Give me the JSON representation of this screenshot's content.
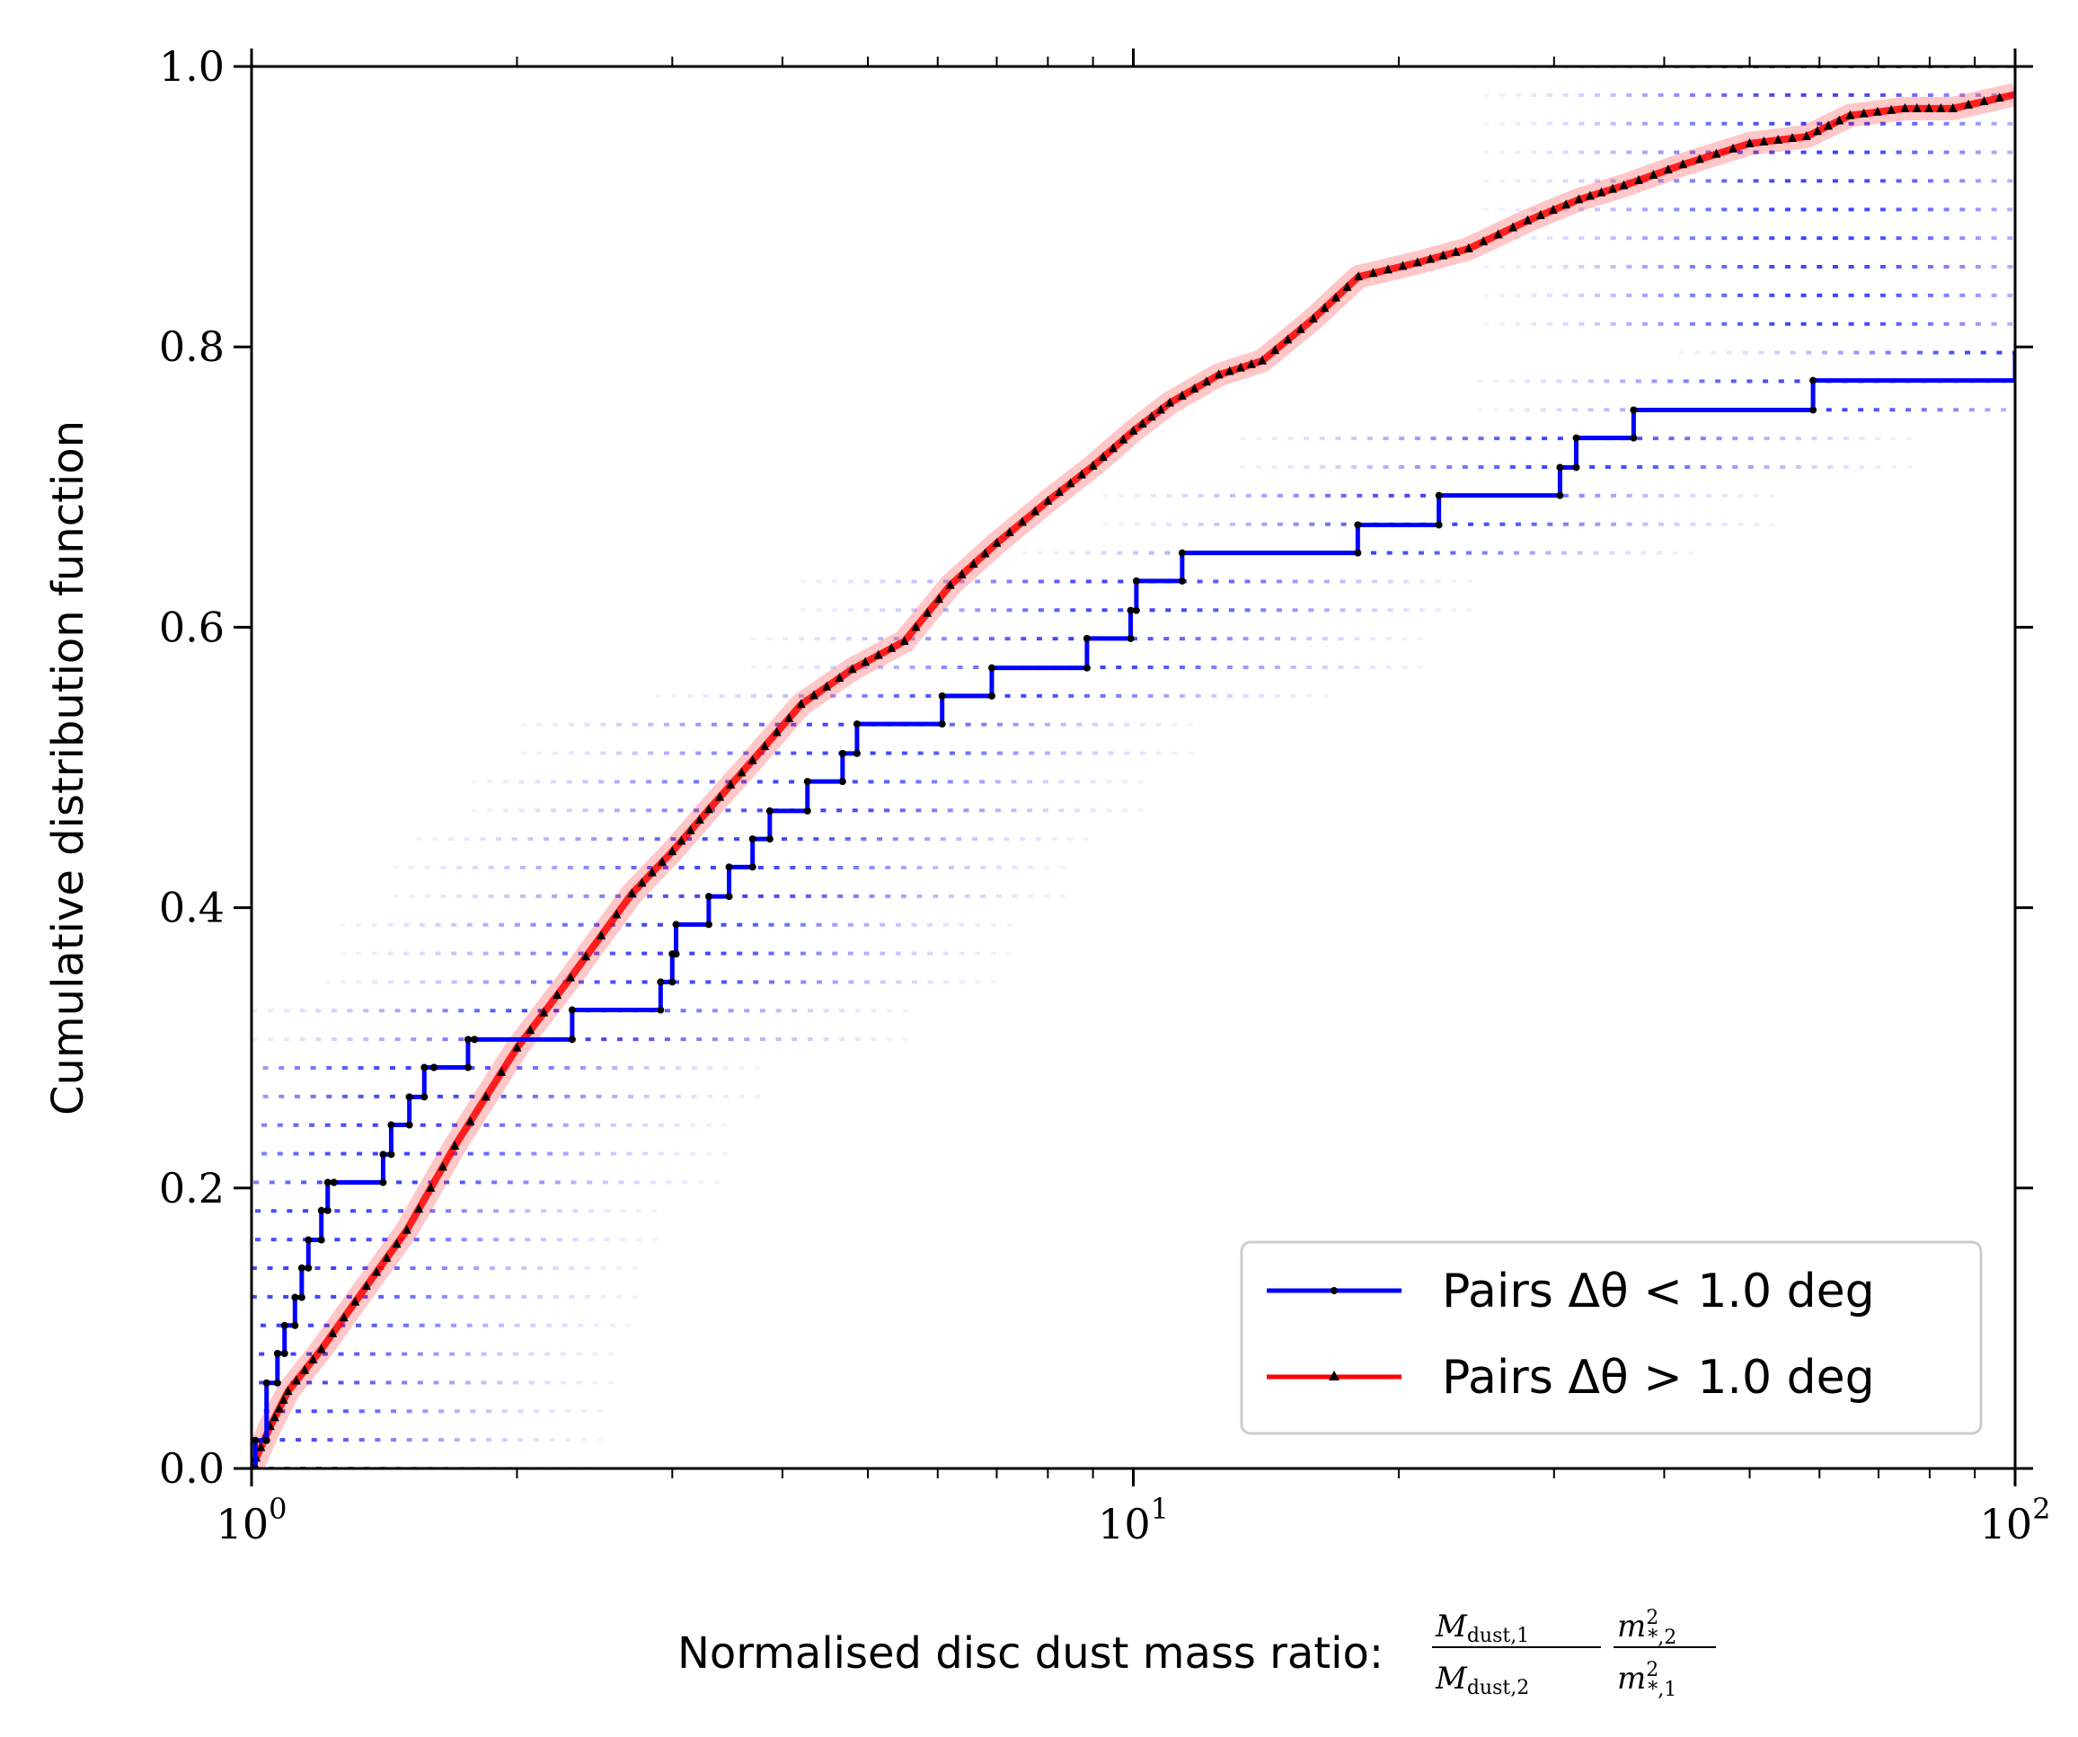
{
  "chart_data": {
    "type": "line",
    "xscale": "log",
    "xlim": [
      1,
      100
    ],
    "ylim": [
      0,
      1
    ],
    "xlabel": "Normalised disc dust mass ratio:",
    "xlabel_math": {
      "num1": "M",
      "num1_sub": "dust,1",
      "den1": "M",
      "den1_sub": "dust,2",
      "num2": "m",
      "num2_sup": "2",
      "num2_sub": "*,2",
      "den2": "m",
      "den2_sup": "2",
      "den2_sub": "*,1"
    },
    "ylabel": "Cumulative distribution function",
    "x_ticks": [
      {
        "value": 1,
        "base": "10",
        "exp": "0"
      },
      {
        "value": 10,
        "base": "10",
        "exp": "1"
      },
      {
        "value": 100,
        "base": "10",
        "exp": "2"
      }
    ],
    "y_ticks": [
      {
        "value": 0.0,
        "label": "0.0"
      },
      {
        "value": 0.2,
        "label": "0.2"
      },
      {
        "value": 0.4,
        "label": "0.4"
      },
      {
        "value": 0.6,
        "label": "0.6"
      },
      {
        "value": 0.8,
        "label": "0.8"
      },
      {
        "value": 1.0,
        "label": "1.0"
      }
    ],
    "grid": false,
    "legend_position": "bottom-right",
    "series": [
      {
        "name": "Pairs Δθ < 1.0 deg",
        "color": "#0000ff",
        "marker": "dot",
        "style": "step",
        "x": [
          1.0,
          1.01,
          1.04,
          1.07,
          1.09,
          1.12,
          1.14,
          1.16,
          1.2,
          1.22,
          1.24,
          1.41,
          1.44,
          1.51,
          1.57,
          1.61,
          1.76,
          1.79,
          2.31,
          2.91,
          3.0,
          3.03,
          3.3,
          3.48,
          3.7,
          3.87,
          4.27,
          4.68,
          4.86,
          6.07,
          6.91,
          8.86,
          9.93,
          10.08,
          11.36,
          17.97,
          22.21,
          30.47,
          31.79,
          36.93,
          59.0,
          100
        ],
        "y": [
          0.0,
          0.02,
          0.061,
          0.082,
          0.102,
          0.122,
          0.143,
          0.163,
          0.184,
          0.204,
          0.204,
          0.224,
          0.245,
          0.265,
          0.286,
          0.286,
          0.306,
          0.306,
          0.327,
          0.347,
          0.367,
          0.388,
          0.408,
          0.429,
          0.449,
          0.469,
          0.49,
          0.51,
          0.531,
          0.551,
          0.571,
          0.592,
          0.612,
          0.633,
          0.653,
          0.673,
          0.694,
          0.714,
          0.735,
          0.755,
          0.776,
          0.796
        ]
      },
      {
        "name": "Pairs Δθ > 1.0 deg",
        "color": "#ff0000",
        "marker": "triangle",
        "style": "line",
        "x": [
          1.0,
          1.05,
          1.1,
          1.2,
          1.35,
          1.5,
          1.7,
          2.0,
          2.3,
          2.7,
          3.0,
          3.3,
          3.7,
          4.2,
          4.8,
          5.5,
          6.2,
          7.0,
          8.0,
          9.0,
          10.0,
          11.0,
          12.5,
          14.0,
          16.0,
          18.0,
          21.0,
          24.0,
          28.0,
          32.0,
          36.0,
          42.0,
          50.0,
          58.0,
          65.0,
          75.0,
          85.0,
          100.0
        ],
        "y": [
          0.0,
          0.03,
          0.055,
          0.085,
          0.13,
          0.17,
          0.23,
          0.3,
          0.35,
          0.41,
          0.44,
          0.47,
          0.505,
          0.545,
          0.57,
          0.59,
          0.63,
          0.66,
          0.69,
          0.715,
          0.74,
          0.76,
          0.78,
          0.79,
          0.82,
          0.85,
          0.86,
          0.87,
          0.89,
          0.905,
          0.915,
          0.93,
          0.945,
          0.95,
          0.965,
          0.97,
          0.97,
          0.98
        ]
      }
    ],
    "bootstrap_band": {
      "color": "#0000ff",
      "note_source": "faint dotted realisations around the blue step curve"
    }
  }
}
